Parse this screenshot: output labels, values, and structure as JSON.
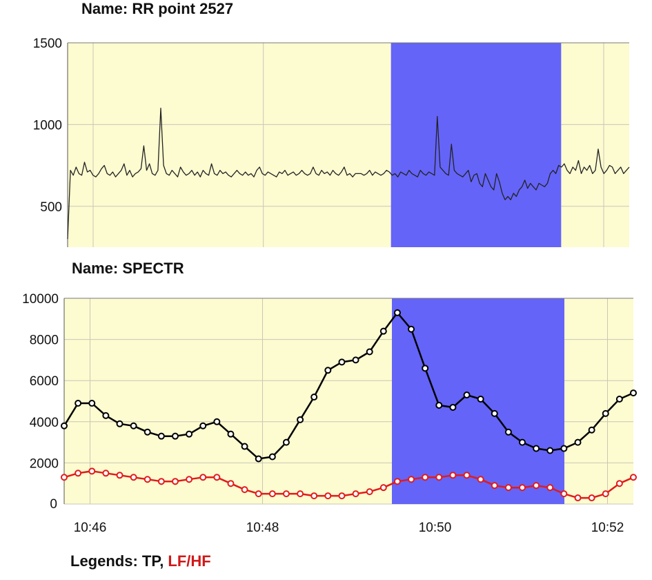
{
  "charts": {
    "rr": {
      "title": "Name: RR point 2527"
    },
    "spectr": {
      "title": "Name: SPECTR"
    }
  },
  "legend": {
    "prefix": "Legends: ",
    "tp": "TP",
    "sep": ", ",
    "lfhf": "LF/HF"
  },
  "colors": {
    "background": "#fdfbd0",
    "highlight": "#6464f8",
    "tp": "#000000",
    "lfhf": "#e11b1b",
    "grid": "#c8c8b4"
  },
  "chart_data": [
    {
      "type": "line",
      "title": "Name: RR point 2527",
      "x_ticks": [
        "10:46",
        "10:48",
        "10:50",
        "10:52"
      ],
      "x_range": [
        "10:45.7",
        "10:52.3"
      ],
      "ylim": [
        250,
        1500
      ],
      "yticks": [
        500,
        1000,
        1500
      ],
      "grid": true,
      "highlight": {
        "from": "10:49.5",
        "to": "10:51.5"
      },
      "series": [
        {
          "values": [
            300,
            720,
            690,
            740,
            700,
            690,
            770,
            710,
            720,
            690,
            680,
            700,
            730,
            750,
            700,
            690,
            710,
            680,
            700,
            720,
            760,
            690,
            720,
            680,
            700,
            710,
            730,
            870,
            720,
            760,
            700,
            690,
            720,
            1100,
            750,
            700,
            690,
            720,
            700,
            680,
            740,
            710,
            690,
            700,
            720,
            690,
            710,
            680,
            720,
            700,
            690,
            760,
            700,
            690,
            720,
            700,
            710,
            690,
            680,
            700,
            720,
            700,
            690,
            710,
            690,
            700,
            680,
            720,
            740,
            700,
            690,
            710,
            700,
            690,
            680,
            710,
            700,
            720,
            690,
            700,
            710,
            690,
            700,
            720,
            700,
            690,
            700,
            740,
            700,
            690,
            720,
            700,
            710,
            690,
            720,
            700,
            690,
            710,
            740,
            690,
            700,
            680,
            700,
            700,
            700,
            690,
            700,
            720,
            690,
            710,
            700,
            690,
            700,
            720,
            710,
            690,
            700,
            680,
            710,
            700,
            690,
            720,
            700,
            690,
            680,
            720,
            700,
            690,
            710,
            700,
            690,
            1050,
            740,
            720,
            700,
            690,
            880,
            720,
            700,
            690,
            680,
            700,
            720,
            650,
            690,
            700,
            640,
            620,
            700,
            660,
            620,
            600,
            700,
            650,
            580,
            540,
            560,
            540,
            580,
            560,
            600,
            620,
            660,
            610,
            640,
            620,
            600,
            640,
            630,
            620,
            640,
            700,
            720,
            700,
            750,
            740,
            760,
            720,
            700,
            740,
            720,
            780,
            700,
            740,
            720,
            750,
            700,
            720,
            850,
            740,
            700,
            720,
            750,
            740,
            700,
            720,
            740,
            700,
            720,
            740
          ]
        }
      ]
    },
    {
      "type": "line",
      "title": "Name: SPECTR",
      "x_ticks": [
        "10:46",
        "10:48",
        "10:50",
        "10:52"
      ],
      "x_range": [
        "10:45.7",
        "10:52.3"
      ],
      "ylim": [
        0,
        10000
      ],
      "yticks": [
        0,
        2000,
        4000,
        6000,
        8000,
        10000
      ],
      "grid": true,
      "highlight": {
        "from": "10:49.5",
        "to": "10:51.5"
      },
      "series": [
        {
          "name": "TP",
          "values": [
            3800,
            4900,
            4900,
            4300,
            3900,
            3800,
            3500,
            3300,
            3300,
            3400,
            3800,
            4000,
            3400,
            2800,
            2200,
            2300,
            3000,
            4100,
            5200,
            6500,
            6900,
            7000,
            7400,
            8400,
            9300,
            8500,
            6600,
            4800,
            4700,
            5300,
            5100,
            4400,
            3500,
            3000,
            2700,
            2600,
            2700,
            3000,
            3600,
            4400,
            5100,
            5400
          ]
        },
        {
          "name": "LF/HF",
          "values": [
            1300,
            1500,
            1600,
            1500,
            1400,
            1300,
            1200,
            1100,
            1100,
            1200,
            1300,
            1300,
            1000,
            700,
            500,
            500,
            500,
            500,
            400,
            400,
            400,
            500,
            600,
            800,
            1100,
            1200,
            1300,
            1300,
            1400,
            1400,
            1200,
            900,
            800,
            800,
            900,
            800,
            500,
            300,
            300,
            500,
            1000,
            1300
          ]
        }
      ]
    }
  ]
}
